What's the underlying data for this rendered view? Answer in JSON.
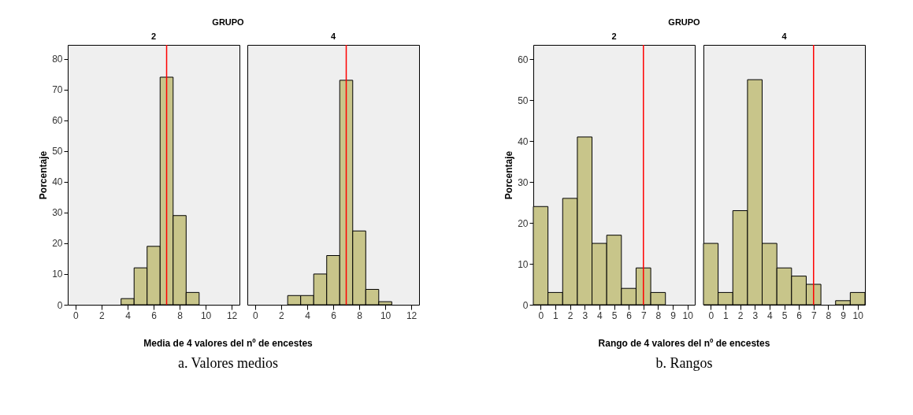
{
  "chart_data": [
    {
      "type": "histogram",
      "title": "2",
      "xlabel": "Media de 4 valores del nº de encestes",
      "ylabel": "Porcentaje",
      "annotations": [
        "GRUPO",
        "a.   Valores medios"
      ],
      "bins": [
        3.5,
        4.5,
        5.5,
        6.5,
        7.5,
        8.5,
        9.5
      ],
      "values": [
        2,
        12,
        19,
        74,
        29,
        4
      ],
      "color": "#c8c58a",
      "xlim": [
        -0.6,
        12.6
      ],
      "xticks": [
        0,
        2,
        4,
        6,
        8,
        10,
        12
      ],
      "ylim": [
        0,
        84.5
      ],
      "yticks": [
        0,
        10,
        20,
        30,
        40,
        50,
        60,
        70,
        80
      ],
      "ref_lines": [
        {
          "axis": "x",
          "value": 7,
          "color": "#ff0000"
        }
      ]
    },
    {
      "type": "histogram",
      "title": "4",
      "bins": [
        2.5,
        3.5,
        4.5,
        5.5,
        6.5,
        7.5,
        8.5,
        9.5,
        10.5
      ],
      "values": [
        3,
        3,
        10,
        16,
        73,
        24,
        5,
        1
      ],
      "color": "#c8c58a",
      "xlim": [
        -0.6,
        12.6
      ],
      "xticks": [
        0,
        2,
        4,
        6,
        8,
        10,
        12
      ],
      "ylim": [
        0,
        84.5
      ],
      "tick_labels": "x",
      "ref_lines": [
        {
          "axis": "x",
          "value": 7,
          "color": "#ff0000"
        }
      ]
    },
    {
      "type": "histogram",
      "title": "2",
      "xlabel": "Rango de 4 valores del nº de encestes",
      "ylabel": "Porcentaje",
      "annotations": [
        "GRUPO",
        "b.   Rangos"
      ],
      "bins": [
        -0.5,
        0.5,
        1.5,
        2.5,
        3.5,
        4.5,
        5.5,
        6.5,
        7.5,
        8.5
      ],
      "values": [
        24,
        3,
        26,
        41,
        15,
        17,
        4,
        9,
        3
      ],
      "color": "#c8c58a",
      "xlim": [
        -0.5,
        10.5
      ],
      "xticks": [
        0,
        1,
        2,
        3,
        4,
        5,
        6,
        7,
        8,
        9,
        10
      ],
      "ylim": [
        0,
        63.5
      ],
      "yticks": [
        0,
        10,
        20,
        30,
        40,
        50,
        60
      ],
      "ref_lines": [
        {
          "axis": "x",
          "value": 7,
          "color": "#ff0000"
        }
      ]
    },
    {
      "type": "histogram",
      "title": "4",
      "bins": [
        -0.5,
        0.5,
        1.5,
        2.5,
        3.5,
        4.5,
        5.5,
        6.5,
        7.5,
        8.5,
        9.5,
        10.5
      ],
      "values": [
        15,
        3,
        23,
        55,
        15,
        9,
        7,
        5,
        0,
        1,
        3
      ],
      "color": "#c8c58a",
      "xlim": [
        -0.5,
        10.5
      ],
      "xticks": [
        0,
        1,
        2,
        3,
        4,
        5,
        6,
        7,
        8,
        9,
        10
      ],
      "ylim": [
        0,
        63.5
      ],
      "tick_labels": "x",
      "ref_lines": [
        {
          "axis": "x",
          "value": 7,
          "color": "#ff0000"
        }
      ]
    }
  ]
}
